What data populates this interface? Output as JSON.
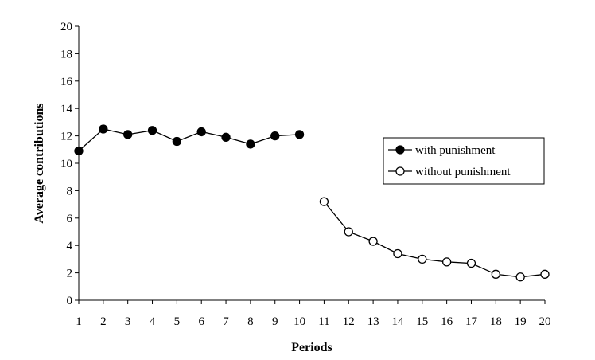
{
  "chart_data": {
    "type": "line",
    "title": "",
    "xlabel": "Periods",
    "ylabel": "Average contributions",
    "xlim": [
      1,
      20
    ],
    "ylim": [
      0,
      20
    ],
    "x_ticks": [
      "1",
      "2",
      "3",
      "4",
      "5",
      "6",
      "7",
      "8",
      "9",
      "10",
      "11",
      "12",
      "13",
      "14",
      "15",
      "16",
      "17",
      "18",
      "19",
      "20"
    ],
    "y_ticks": [
      "0",
      "2",
      "4",
      "6",
      "8",
      "10",
      "12",
      "14",
      "16",
      "18",
      "20"
    ],
    "grid": false,
    "legend_position": "right",
    "series": [
      {
        "name": "with punishment",
        "marker": "filled-circle",
        "color": "#000000",
        "x": [
          1,
          2,
          3,
          4,
          5,
          6,
          7,
          8,
          9,
          10
        ],
        "y": [
          10.9,
          12.5,
          12.1,
          12.4,
          11.6,
          12.3,
          11.9,
          11.4,
          12.0,
          12.1
        ]
      },
      {
        "name": "without punishment",
        "marker": "open-circle",
        "color": "#000000",
        "x": [
          11,
          12,
          13,
          14,
          15,
          16,
          17,
          18,
          19,
          20
        ],
        "y": [
          7.2,
          5.0,
          4.3,
          3.4,
          3.0,
          2.8,
          2.7,
          1.9,
          1.7,
          1.9
        ]
      }
    ]
  }
}
